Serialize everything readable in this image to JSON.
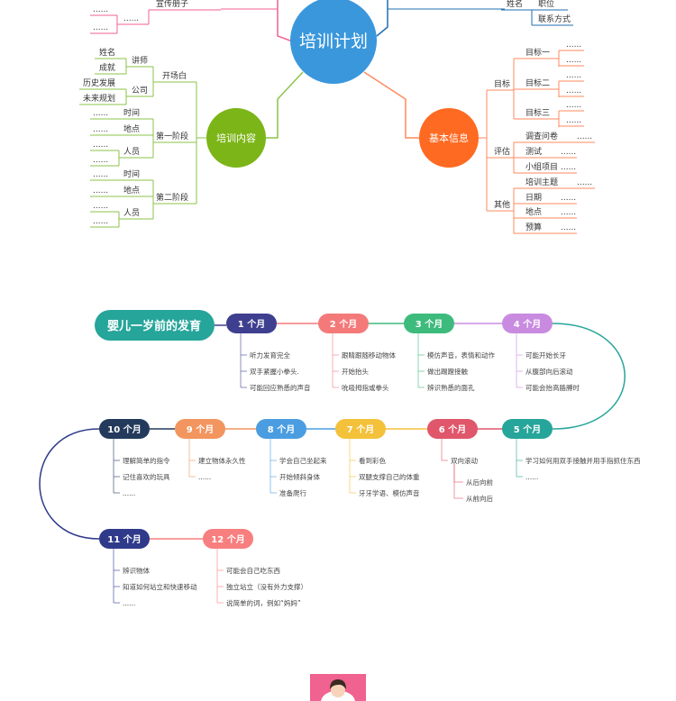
{
  "mindmap": {
    "center": "培训计划",
    "top_left": [
      "......",
      "宣传册子",
      "......",
      "......"
    ],
    "top_right": [
      "姓名",
      "职位",
      "联系方式"
    ],
    "content": {
      "label": "培训内容",
      "opening": {
        "label": "开场白",
        "lecturer": {
          "label": "讲师",
          "items": [
            "姓名",
            "成就"
          ]
        },
        "company": {
          "label": "公司",
          "items": [
            "历史发展",
            "未来规划"
          ]
        }
      },
      "stages": [
        {
          "label": "第一阶段",
          "time": "时间",
          "place": "地点",
          "people": "人员",
          "details": [
            "......",
            "......",
            "......",
            "......"
          ]
        },
        {
          "label": "第二阶段",
          "time": "时间",
          "place": "地点",
          "people": "人员",
          "details": [
            "......",
            "......",
            "......",
            "......"
          ]
        }
      ]
    },
    "info": {
      "label": "基本信息",
      "goals": {
        "label": "目标",
        "items": [
          {
            "label": "目标一",
            "details": [
              "......",
              "......"
            ]
          },
          {
            "label": "目标二",
            "details": [
              "......",
              "......"
            ]
          },
          {
            "label": "目标三",
            "details": [
              "......",
              "......"
            ]
          }
        ]
      },
      "evaluation": {
        "label": "评估",
        "items": [
          {
            "label": "调查问卷",
            "detail": "......"
          },
          {
            "label": "测试",
            "detail": "......"
          },
          {
            "label": "小组项目",
            "detail": "......"
          }
        ]
      },
      "other": {
        "label": "其他",
        "items": [
          {
            "label": "培训主题",
            "detail": "......"
          },
          {
            "label": "日期",
            "detail": "......"
          },
          {
            "label": "地点",
            "detail": "......"
          },
          {
            "label": "预算",
            "detail": "......"
          }
        ]
      }
    }
  },
  "timeline": {
    "title": "婴儿一岁前的发育",
    "title_color": "#26a59a",
    "months": [
      {
        "label": "1 个月",
        "color": "#3f3f8f",
        "items": [
          "听力发育完全",
          "双手紧握小拳头.",
          "可能回应熟悉的声音"
        ]
      },
      {
        "label": "2 个月",
        "color": "#f47a7a",
        "items": [
          "跟睛跟随移动物体",
          "开始抬头",
          "吮吸拇指或拳头"
        ]
      },
      {
        "label": "3 个月",
        "color": "#3dbb7d",
        "items": [
          "模仿声音，表情和动作",
          "做出踢蹬接触",
          "辨识熟悉的面孔"
        ]
      },
      {
        "label": "4 个月",
        "color": "#c98be0",
        "items": [
          "可能开始长牙",
          "从腹部向后滚动",
          "可能会抬高胳膊时"
        ]
      },
      {
        "label": "5 个月",
        "color": "#26a59a",
        "items": [
          "学习如何用双手接触并用手指抓住东西",
          "......"
        ]
      },
      {
        "label": "6 个月",
        "color": "#e0566a",
        "items": [
          "双向滚动"
        ],
        "sub": [
          "从后向前",
          "从前向后"
        ]
      },
      {
        "label": "7 个月",
        "color": "#f3c13a",
        "items": [
          "看到彩色",
          "双腿支撑自己的体重",
          "牙牙学语、模仿声音"
        ]
      },
      {
        "label": "8 个月",
        "color": "#4a9de0",
        "items": [
          "学会自己坐起来",
          "开始倾斜身体",
          "准备爬行"
        ]
      },
      {
        "label": "9 个月",
        "color": "#f2955e",
        "items": [
          "建立物体永久性",
          "......"
        ]
      },
      {
        "label": "10 个月",
        "color": "#233a5c",
        "items": [
          "理解简单的指令",
          "记住喜欢的玩具",
          "......"
        ]
      },
      {
        "label": "11 个月",
        "color": "#2f3a8a",
        "items": [
          "辨识物体",
          "知道如何站立和快速移动",
          "......"
        ]
      },
      {
        "label": "12 个月",
        "color": "#f87f7f",
        "items": [
          "可能会自己吃东西",
          "独立站立（没有外力支撑）",
          "说简单的词，例如“妈妈”"
        ]
      }
    ]
  }
}
